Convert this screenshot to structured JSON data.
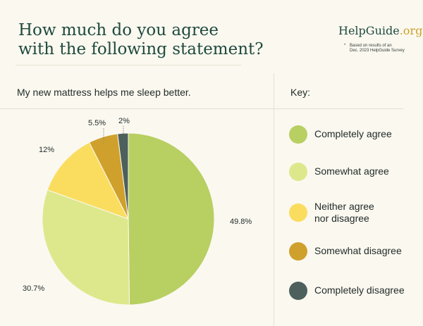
{
  "header": {
    "title_lines": [
      "How much do you agree",
      "with the following statement?"
    ],
    "logo_main": "HelpGuide",
    "logo_tld": ".org",
    "note_asterisk": "*",
    "note_lines": [
      "Based on results of an",
      "Dec. 2023 HelpGuide Survey"
    ]
  },
  "statement": "My new mattress helps me sleep better.",
  "key_title": "Key:",
  "chart_data": {
    "type": "pie",
    "title": "How much do you agree with the following statement?",
    "subtitle": "My new mattress helps me sleep better.",
    "slices": [
      {
        "name": "Completely agree",
        "value": 49.8,
        "label": "49.8%",
        "color": "#b8cf62"
      },
      {
        "name": "Somewhat agree",
        "value": 30.7,
        "label": "30.7%",
        "color": "#dde88c"
      },
      {
        "name": "Neither agree nor disagree",
        "value": 12,
        "label": "12%",
        "color": "#fadd5e"
      },
      {
        "name": "Somewhat disagree",
        "value": 5.5,
        "label": "5.5%",
        "color": "#cfa12c"
      },
      {
        "name": "Completely disagree",
        "value": 2,
        "label": "2%",
        "color": "#4d605c"
      }
    ],
    "legend": "right"
  },
  "legend_items": [
    {
      "lines": [
        "Completely agree"
      ],
      "color": "#b8cf62"
    },
    {
      "lines": [
        "Somewhat agree"
      ],
      "color": "#dde88c"
    },
    {
      "lines": [
        "Neither agree",
        "nor disagree"
      ],
      "color": "#fadd5e"
    },
    {
      "lines": [
        "Somewhat disagree"
      ],
      "color": "#cfa12c"
    },
    {
      "lines": [
        "Completely disagree"
      ],
      "color": "#4d605c"
    }
  ]
}
